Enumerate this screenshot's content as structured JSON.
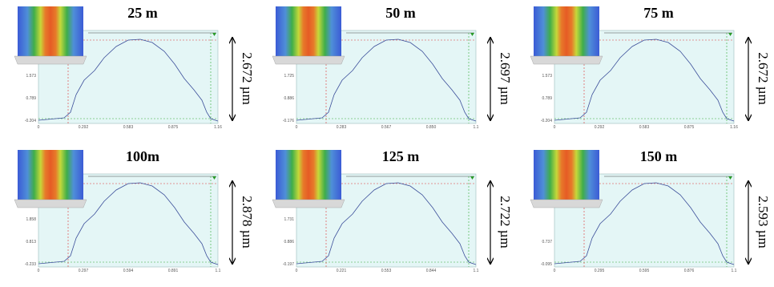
{
  "panels": [
    {
      "title": "25 m",
      "height": "2.672 µm",
      "xticks": [
        "0",
        "0.292",
        "0.583",
        "0.875",
        "1.16"
      ],
      "yticks": [
        "-0.204",
        "0.789",
        "1.573"
      ]
    },
    {
      "title": "50 m",
      "height": "2.697 µm",
      "xticks": [
        "0",
        "0.283",
        "0.567",
        "0.850",
        "1.1"
      ],
      "yticks": [
        "-0.176",
        "0.886",
        "1.725"
      ]
    },
    {
      "title": "75 m",
      "height": "2.672 µm",
      "xticks": [
        "0",
        "0.292",
        "0.583",
        "0.875",
        "1.16"
      ],
      "yticks": [
        "-0.204",
        "0.789",
        "1.573"
      ]
    },
    {
      "title": "100m",
      "height": "2.878 µm",
      "xticks": [
        "0",
        "0.297",
        "0.594",
        "0.891",
        "1.1"
      ],
      "yticks": [
        "-0.233",
        "0.813",
        "1.858"
      ]
    },
    {
      "title": "125 m",
      "height": "2.722 µm",
      "xticks": [
        "0",
        "0.221",
        "0.553",
        "0.844",
        "1.1"
      ],
      "yticks": [
        "-0.197",
        "0.886",
        "1.731"
      ]
    },
    {
      "title": "150 m",
      "height": "2.593 µm",
      "xticks": [
        "0",
        "0.295",
        "0.595",
        "0.876",
        "1.1"
      ],
      "yticks": [
        "-0.095",
        "0.737"
      ]
    }
  ]
}
